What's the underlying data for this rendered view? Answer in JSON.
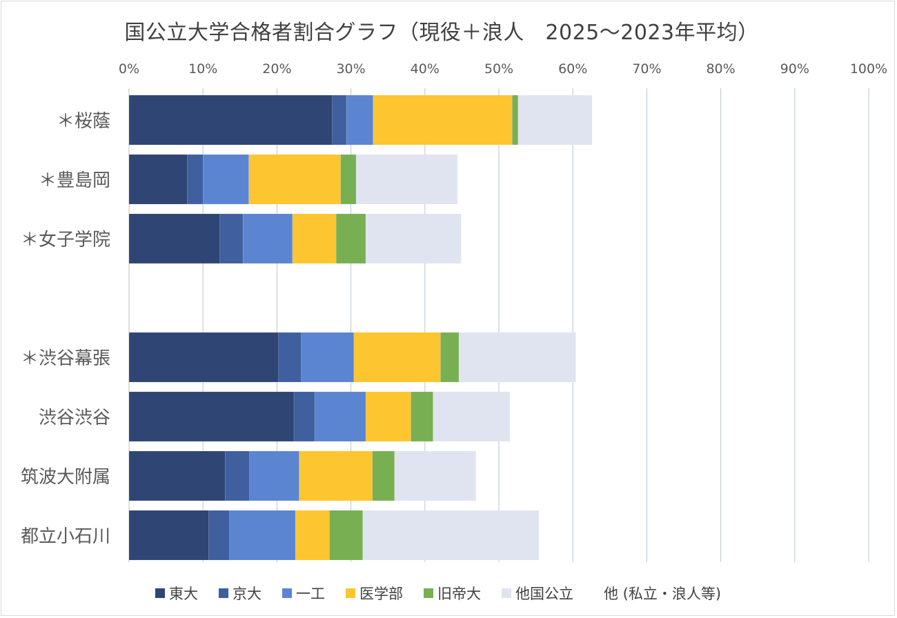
{
  "chart_data": {
    "type": "bar",
    "orientation": "horizontal",
    "stacked": true,
    "title": "国公立大学合格者割合グラフ（現役＋浪人　2025〜2023年平均）",
    "xlim": [
      0,
      100
    ],
    "x_ticks": [
      "0%",
      "10%",
      "20%",
      "30%",
      "40%",
      "50%",
      "60%",
      "70%",
      "80%",
      "90%",
      "100%"
    ],
    "grid": true,
    "legend_position": "bottom",
    "categories": [
      "＊桜蔭",
      "＊豊島岡",
      "＊女子学院",
      "",
      "＊渋谷幕張",
      "渋谷渋谷",
      "筑波大附属",
      "都立小石川"
    ],
    "series": [
      {
        "name": "東大",
        "color": "#2f4573",
        "values": [
          27.5,
          7.9,
          12.3,
          null,
          20.2,
          22.3,
          13.0,
          10.8
        ]
      },
      {
        "name": "京大",
        "color": "#3f5f9f",
        "values": [
          1.9,
          2.1,
          3.1,
          null,
          3.1,
          2.8,
          3.3,
          2.8
        ]
      },
      {
        "name": "一工",
        "color": "#5b85d1",
        "values": [
          3.6,
          6.2,
          6.7,
          null,
          7.1,
          6.9,
          6.7,
          8.9
        ]
      },
      {
        "name": "医学部",
        "color": "#fdc52f",
        "values": [
          18.8,
          12.4,
          5.9,
          null,
          11.7,
          6.1,
          9.9,
          4.6
        ]
      },
      {
        "name": "旧帝大",
        "color": "#79af53",
        "values": [
          0.8,
          2.1,
          4.0,
          null,
          2.5,
          3.0,
          3.0,
          4.5
        ]
      },
      {
        "name": "他国公立",
        "color": "#dfe4f0",
        "values": [
          10.0,
          13.7,
          12.9,
          null,
          15.8,
          10.4,
          11.0,
          23.8
        ]
      },
      {
        "name": "他 (私立・浪人等)",
        "color": "#ffffff",
        "values": [
          37.4,
          55.6,
          55.1,
          null,
          39.6,
          48.5,
          53.1,
          44.6
        ]
      }
    ]
  },
  "colors": {
    "axis_text": "#595959",
    "grid": "#b9c4cf",
    "title_text": "#404040"
  }
}
